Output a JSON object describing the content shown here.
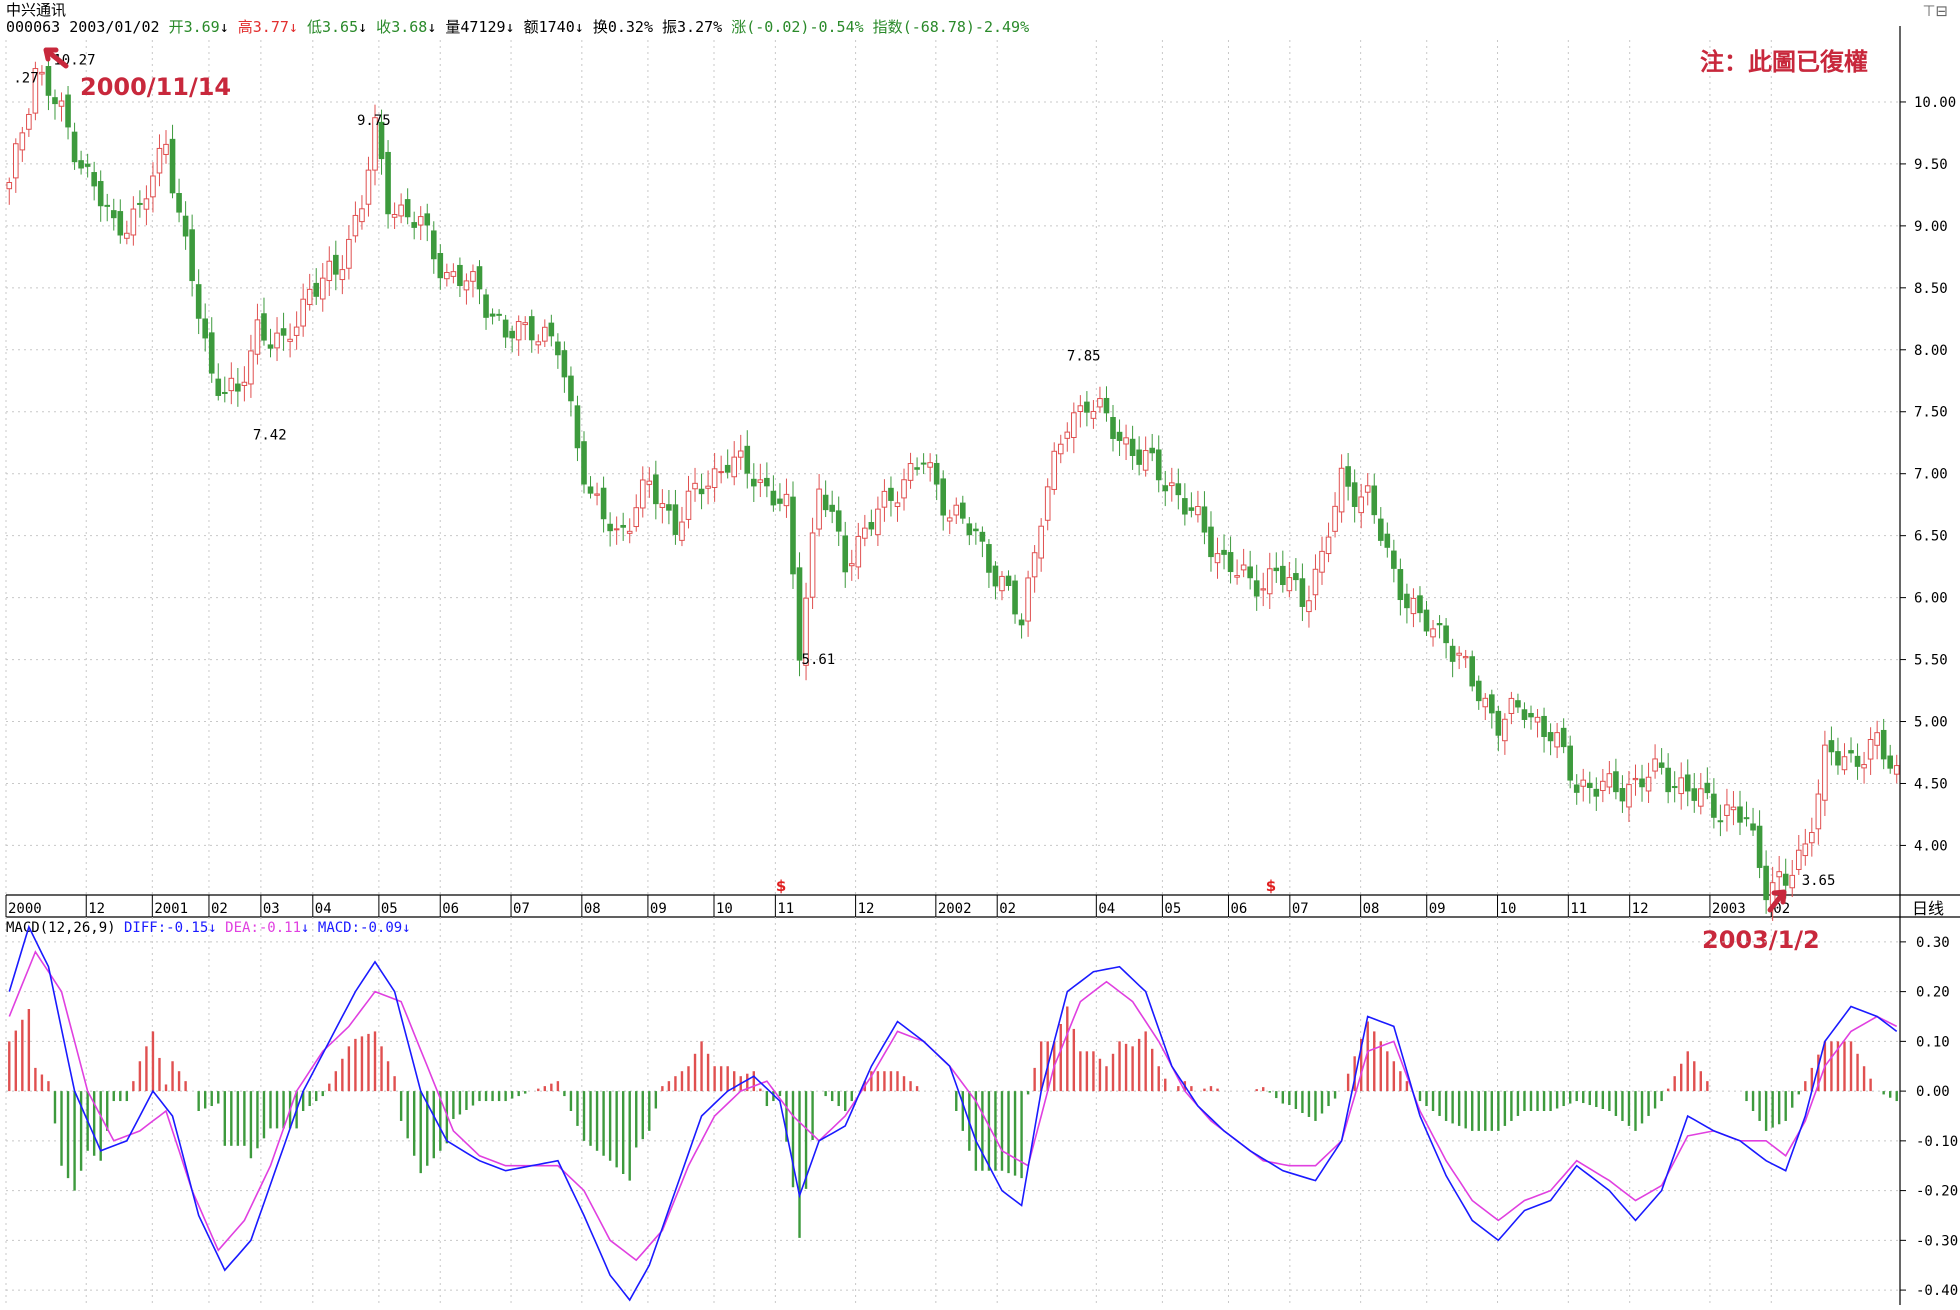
{
  "header": {
    "stock_name": "中兴通讯",
    "code": "000063",
    "date": "2003/01/02",
    "open_label": "开",
    "open_value": "3.69",
    "high_label": "高",
    "high_value": "3.77",
    "low_label": "低",
    "low_value": "3.65",
    "close_label": "收",
    "close_value": "3.68",
    "volume_label": "量",
    "volume_value": "47129",
    "amount_label": "额",
    "amount_value": "1740",
    "turnover_label": "换",
    "turnover_value": "0.32%",
    "amplitude_label": "振",
    "amplitude_value": "3.27%",
    "change_label": "涨",
    "change_value": "(-0.02)-0.54%",
    "index_label": "指数",
    "index_value": "(-68.78)-2.49%",
    "down_arrow": "↓",
    "window_controls": "⊤⊟"
  },
  "annotations": {
    "note": "注：此圖已復權",
    "start_date": "2000/11/14",
    "end_date": "2003/1/2"
  },
  "period_label": "日线",
  "macd_header": {
    "name": "MACD(12,26,9)",
    "diff": "DIFF:-0.15",
    "dea": "DEA:-0.11",
    "macd": "MACD:-0.09",
    "arrow": "↓"
  },
  "colors": {
    "up": "#e05050",
    "down": "#3d9a3d",
    "diff_line": "#1a1aff",
    "dea_line": "#e040e0",
    "note_red": "#c8283c",
    "grid": "#c8c8c8"
  },
  "chart_data": [
    {
      "type": "candlestick",
      "title": "中兴通讯",
      "x_axis_labels": [
        "2000",
        "12",
        "2001",
        "02",
        "03",
        "04",
        "05",
        "06",
        "07",
        "08",
        "09",
        "10",
        "11",
        "12",
        "2002",
        "02",
        "04",
        "05",
        "06",
        "07",
        "08",
        "09",
        "10",
        "11",
        "12",
        "2003",
        "02"
      ],
      "y_ticks": [
        "4.00",
        "4.50",
        "5.00",
        "5.50",
        "6.00",
        "6.50",
        "7.00",
        "7.50",
        "8.00",
        "8.50",
        "9.00",
        "9.50",
        "10.00"
      ],
      "ylim": [
        3.6,
        10.5
      ],
      "close_path": [
        [
          0,
          9.3
        ],
        [
          4,
          10.27
        ],
        [
          8,
          9.9
        ],
        [
          12,
          9.4
        ],
        [
          16,
          9.0
        ],
        [
          20,
          9.1
        ],
        [
          24,
          9.7
        ],
        [
          27,
          8.8
        ],
        [
          31,
          7.8
        ],
        [
          35,
          7.6
        ],
        [
          38,
          8.2
        ],
        [
          42,
          8.0
        ],
        [
          46,
          8.5
        ],
        [
          50,
          8.6
        ],
        [
          54,
          9.2
        ],
        [
          56,
          9.75
        ],
        [
          58,
          9.2
        ],
        [
          63,
          9.0
        ],
        [
          67,
          8.6
        ],
        [
          72,
          8.5
        ],
        [
          76,
          8.1
        ],
        [
          80,
          8.2
        ],
        [
          84,
          8.0
        ],
        [
          89,
          6.8
        ],
        [
          93,
          6.5
        ],
        [
          98,
          6.9
        ],
        [
          102,
          6.6
        ],
        [
          106,
          6.9
        ],
        [
          110,
          7.1
        ],
        [
          114,
          7.0
        ],
        [
          119,
          6.7
        ],
        [
          121,
          5.61
        ],
        [
          124,
          6.9
        ],
        [
          128,
          6.3
        ],
        [
          132,
          6.6
        ],
        [
          136,
          6.9
        ],
        [
          140,
          7.1
        ],
        [
          144,
          6.7
        ],
        [
          148,
          6.5
        ],
        [
          152,
          6.1
        ],
        [
          155,
          5.8
        ],
        [
          158,
          6.7
        ],
        [
          162,
          7.4
        ],
        [
          165,
          7.6
        ],
        [
          170,
          7.3
        ],
        [
          174,
          7.1
        ],
        [
          178,
          6.9
        ],
        [
          182,
          6.6
        ],
        [
          186,
          6.3
        ],
        [
          190,
          6.1
        ],
        [
          194,
          6.2
        ],
        [
          198,
          6.0
        ],
        [
          201,
          6.3
        ],
        [
          204,
          6.95
        ],
        [
          208,
          6.8
        ],
        [
          212,
          6.2
        ],
        [
          216,
          5.8
        ],
        [
          220,
          5.7
        ],
        [
          224,
          5.3
        ],
        [
          228,
          5.0
        ],
        [
          232,
          5.1
        ],
        [
          236,
          4.9
        ],
        [
          240,
          4.5
        ],
        [
          245,
          4.45
        ],
        [
          249,
          4.5
        ],
        [
          253,
          4.6
        ],
        [
          258,
          4.4
        ],
        [
          262,
          4.3
        ],
        [
          266,
          4.2
        ],
        [
          269,
          3.7
        ],
        [
          272,
          3.68
        ],
        [
          275,
          4.0
        ],
        [
          278,
          4.7
        ],
        [
          282,
          4.7
        ],
        [
          286,
          4.8
        ],
        [
          289,
          4.6
        ]
      ],
      "labels": [
        {
          "i": 4,
          "value": "10.27"
        },
        {
          "i": 4,
          "value": ".27"
        },
        {
          "i": 37,
          "value": "7.42"
        },
        {
          "i": 56,
          "value": "9.75"
        },
        {
          "i": 121,
          "value": "5.61"
        },
        {
          "i": 165,
          "value": "7.85"
        },
        {
          "i": 272,
          "value": "3.65"
        }
      ],
      "weight_markers": [
        {
          "i": 118,
          "symbol": "$"
        },
        {
          "i": 193,
          "symbol": "$"
        }
      ]
    },
    {
      "type": "line",
      "title": "MACD(12,26,9)",
      "y_ticks": [
        "0.30",
        "0.20",
        "0.10",
        "0.00",
        "-0.10",
        "-0.20",
        "-0.30",
        "-0.40"
      ],
      "ylim": [
        -0.43,
        0.35
      ],
      "series": [
        {
          "name": "DIFF",
          "points": [
            [
              0,
              0.2
            ],
            [
              3,
              0.33
            ],
            [
              6,
              0.25
            ],
            [
              10,
              0.0
            ],
            [
              14,
              -0.12
            ],
            [
              18,
              -0.1
            ],
            [
              22,
              0.0
            ],
            [
              25,
              -0.05
            ],
            [
              29,
              -0.25
            ],
            [
              33,
              -0.36
            ],
            [
              37,
              -0.3
            ],
            [
              41,
              -0.15
            ],
            [
              45,
              0.0
            ],
            [
              49,
              0.1
            ],
            [
              53,
              0.2
            ],
            [
              56,
              0.26
            ],
            [
              59,
              0.2
            ],
            [
              63,
              0.0
            ],
            [
              67,
              -0.1
            ],
            [
              72,
              -0.14
            ],
            [
              76,
              -0.16
            ],
            [
              80,
              -0.15
            ],
            [
              84,
              -0.14
            ],
            [
              88,
              -0.25
            ],
            [
              92,
              -0.37
            ],
            [
              95,
              -0.42
            ],
            [
              98,
              -0.35
            ],
            [
              102,
              -0.2
            ],
            [
              106,
              -0.05
            ],
            [
              110,
              0.0
            ],
            [
              114,
              0.03
            ],
            [
              118,
              -0.02
            ],
            [
              121,
              -0.21
            ],
            [
              124,
              -0.1
            ],
            [
              128,
              -0.07
            ],
            [
              132,
              0.05
            ],
            [
              136,
              0.14
            ],
            [
              140,
              0.1
            ],
            [
              144,
              0.05
            ],
            [
              148,
              -0.1
            ],
            [
              152,
              -0.2
            ],
            [
              155,
              -0.23
            ],
            [
              158,
              0.0
            ],
            [
              162,
              0.2
            ],
            [
              166,
              0.24
            ],
            [
              170,
              0.25
            ],
            [
              174,
              0.2
            ],
            [
              178,
              0.05
            ],
            [
              182,
              -0.03
            ],
            [
              186,
              -0.08
            ],
            [
              190,
              -0.12
            ],
            [
              195,
              -0.16
            ],
            [
              200,
              -0.18
            ],
            [
              204,
              -0.1
            ],
            [
              208,
              0.15
            ],
            [
              212,
              0.13
            ],
            [
              216,
              -0.05
            ],
            [
              220,
              -0.17
            ],
            [
              224,
              -0.26
            ],
            [
              228,
              -0.3
            ],
            [
              232,
              -0.24
            ],
            [
              236,
              -0.22
            ],
            [
              240,
              -0.15
            ],
            [
              245,
              -0.2
            ],
            [
              249,
              -0.26
            ],
            [
              253,
              -0.2
            ],
            [
              257,
              -0.05
            ],
            [
              261,
              -0.08
            ],
            [
              265,
              -0.1
            ],
            [
              269,
              -0.14
            ],
            [
              272,
              -0.16
            ],
            [
              275,
              -0.05
            ],
            [
              278,
              0.1
            ],
            [
              282,
              0.17
            ],
            [
              286,
              0.15
            ],
            [
              289,
              0.12
            ]
          ]
        },
        {
          "name": "DEA",
          "points": [
            [
              0,
              0.15
            ],
            [
              4,
              0.28
            ],
            [
              8,
              0.2
            ],
            [
              12,
              0.0
            ],
            [
              16,
              -0.1
            ],
            [
              20,
              -0.08
            ],
            [
              24,
              -0.04
            ],
            [
              28,
              -0.2
            ],
            [
              32,
              -0.32
            ],
            [
              36,
              -0.26
            ],
            [
              40,
              -0.15
            ],
            [
              44,
              0.0
            ],
            [
              48,
              0.08
            ],
            [
              52,
              0.13
            ],
            [
              56,
              0.2
            ],
            [
              60,
              0.18
            ],
            [
              64,
              0.05
            ],
            [
              68,
              -0.08
            ],
            [
              72,
              -0.13
            ],
            [
              76,
              -0.15
            ],
            [
              80,
              -0.15
            ],
            [
              84,
              -0.15
            ],
            [
              88,
              -0.2
            ],
            [
              92,
              -0.3
            ],
            [
              96,
              -0.34
            ],
            [
              100,
              -0.28
            ],
            [
              104,
              -0.15
            ],
            [
              108,
              -0.05
            ],
            [
              112,
              0.0
            ],
            [
              116,
              0.02
            ],
            [
              120,
              -0.05
            ],
            [
              124,
              -0.1
            ],
            [
              128,
              -0.05
            ],
            [
              132,
              0.03
            ],
            [
              136,
              0.12
            ],
            [
              140,
              0.1
            ],
            [
              144,
              0.05
            ],
            [
              148,
              -0.02
            ],
            [
              152,
              -0.12
            ],
            [
              156,
              -0.15
            ],
            [
              160,
              0.05
            ],
            [
              164,
              0.18
            ],
            [
              168,
              0.22
            ],
            [
              172,
              0.18
            ],
            [
              176,
              0.1
            ],
            [
              180,
              0.0
            ],
            [
              184,
              -0.06
            ],
            [
              188,
              -0.1
            ],
            [
              192,
              -0.14
            ],
            [
              196,
              -0.15
            ],
            [
              200,
              -0.15
            ],
            [
              204,
              -0.1
            ],
            [
              208,
              0.08
            ],
            [
              212,
              0.1
            ],
            [
              216,
              -0.04
            ],
            [
              220,
              -0.14
            ],
            [
              224,
              -0.22
            ],
            [
              228,
              -0.26
            ],
            [
              232,
              -0.22
            ],
            [
              236,
              -0.2
            ],
            [
              240,
              -0.14
            ],
            [
              245,
              -0.18
            ],
            [
              249,
              -0.22
            ],
            [
              253,
              -0.19
            ],
            [
              257,
              -0.09
            ],
            [
              261,
              -0.08
            ],
            [
              265,
              -0.1
            ],
            [
              269,
              -0.1
            ],
            [
              272,
              -0.13
            ],
            [
              275,
              -0.06
            ],
            [
              278,
              0.05
            ],
            [
              282,
              0.12
            ],
            [
              286,
              0.15
            ],
            [
              289,
              0.13
            ]
          ]
        }
      ]
    }
  ]
}
